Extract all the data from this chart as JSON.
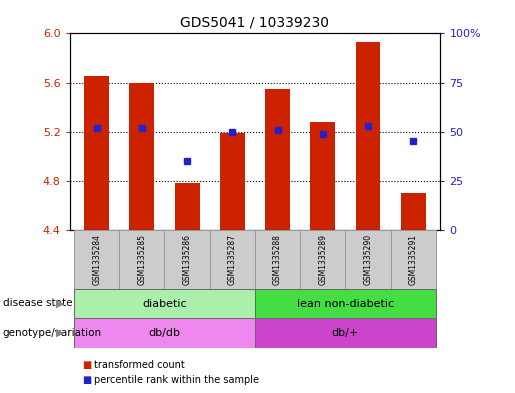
{
  "title": "GDS5041 / 10339230",
  "samples": [
    "GSM1335284",
    "GSM1335285",
    "GSM1335286",
    "GSM1335287",
    "GSM1335288",
    "GSM1335289",
    "GSM1335290",
    "GSM1335291"
  ],
  "transformed_counts": [
    5.65,
    5.6,
    4.78,
    5.19,
    5.55,
    5.28,
    5.93,
    4.7
  ],
  "percentile_ranks": [
    52,
    52,
    35,
    50,
    51,
    49,
    53,
    45
  ],
  "ylim_left": [
    4.4,
    6.0
  ],
  "ylim_right": [
    0,
    100
  ],
  "yticks_left": [
    4.4,
    4.8,
    5.2,
    5.6,
    6.0
  ],
  "yticks_right": [
    0,
    25,
    50,
    75,
    100
  ],
  "bar_color": "#cc2200",
  "dot_color": "#2222cc",
  "bar_baseline": 4.4,
  "disease_states": [
    {
      "label": "diabetic",
      "start": 0,
      "end": 4,
      "color": "#aaf0aa"
    },
    {
      "label": "lean non-diabetic",
      "start": 4,
      "end": 8,
      "color": "#44dd44"
    }
  ],
  "genotypes": [
    {
      "label": "db/db",
      "start": 0,
      "end": 4,
      "color": "#ee88ee"
    },
    {
      "label": "db/+",
      "start": 4,
      "end": 8,
      "color": "#cc44cc"
    }
  ],
  "legend_items": [
    {
      "color": "#cc2200",
      "label": "transformed count"
    },
    {
      "color": "#2222cc",
      "label": "percentile rank within the sample"
    }
  ],
  "bar_width": 0.55,
  "left_axis_color": "#cc2200",
  "right_axis_color": "#2222cc",
  "label_box_color": "#cccccc",
  "border_color": "#888888"
}
